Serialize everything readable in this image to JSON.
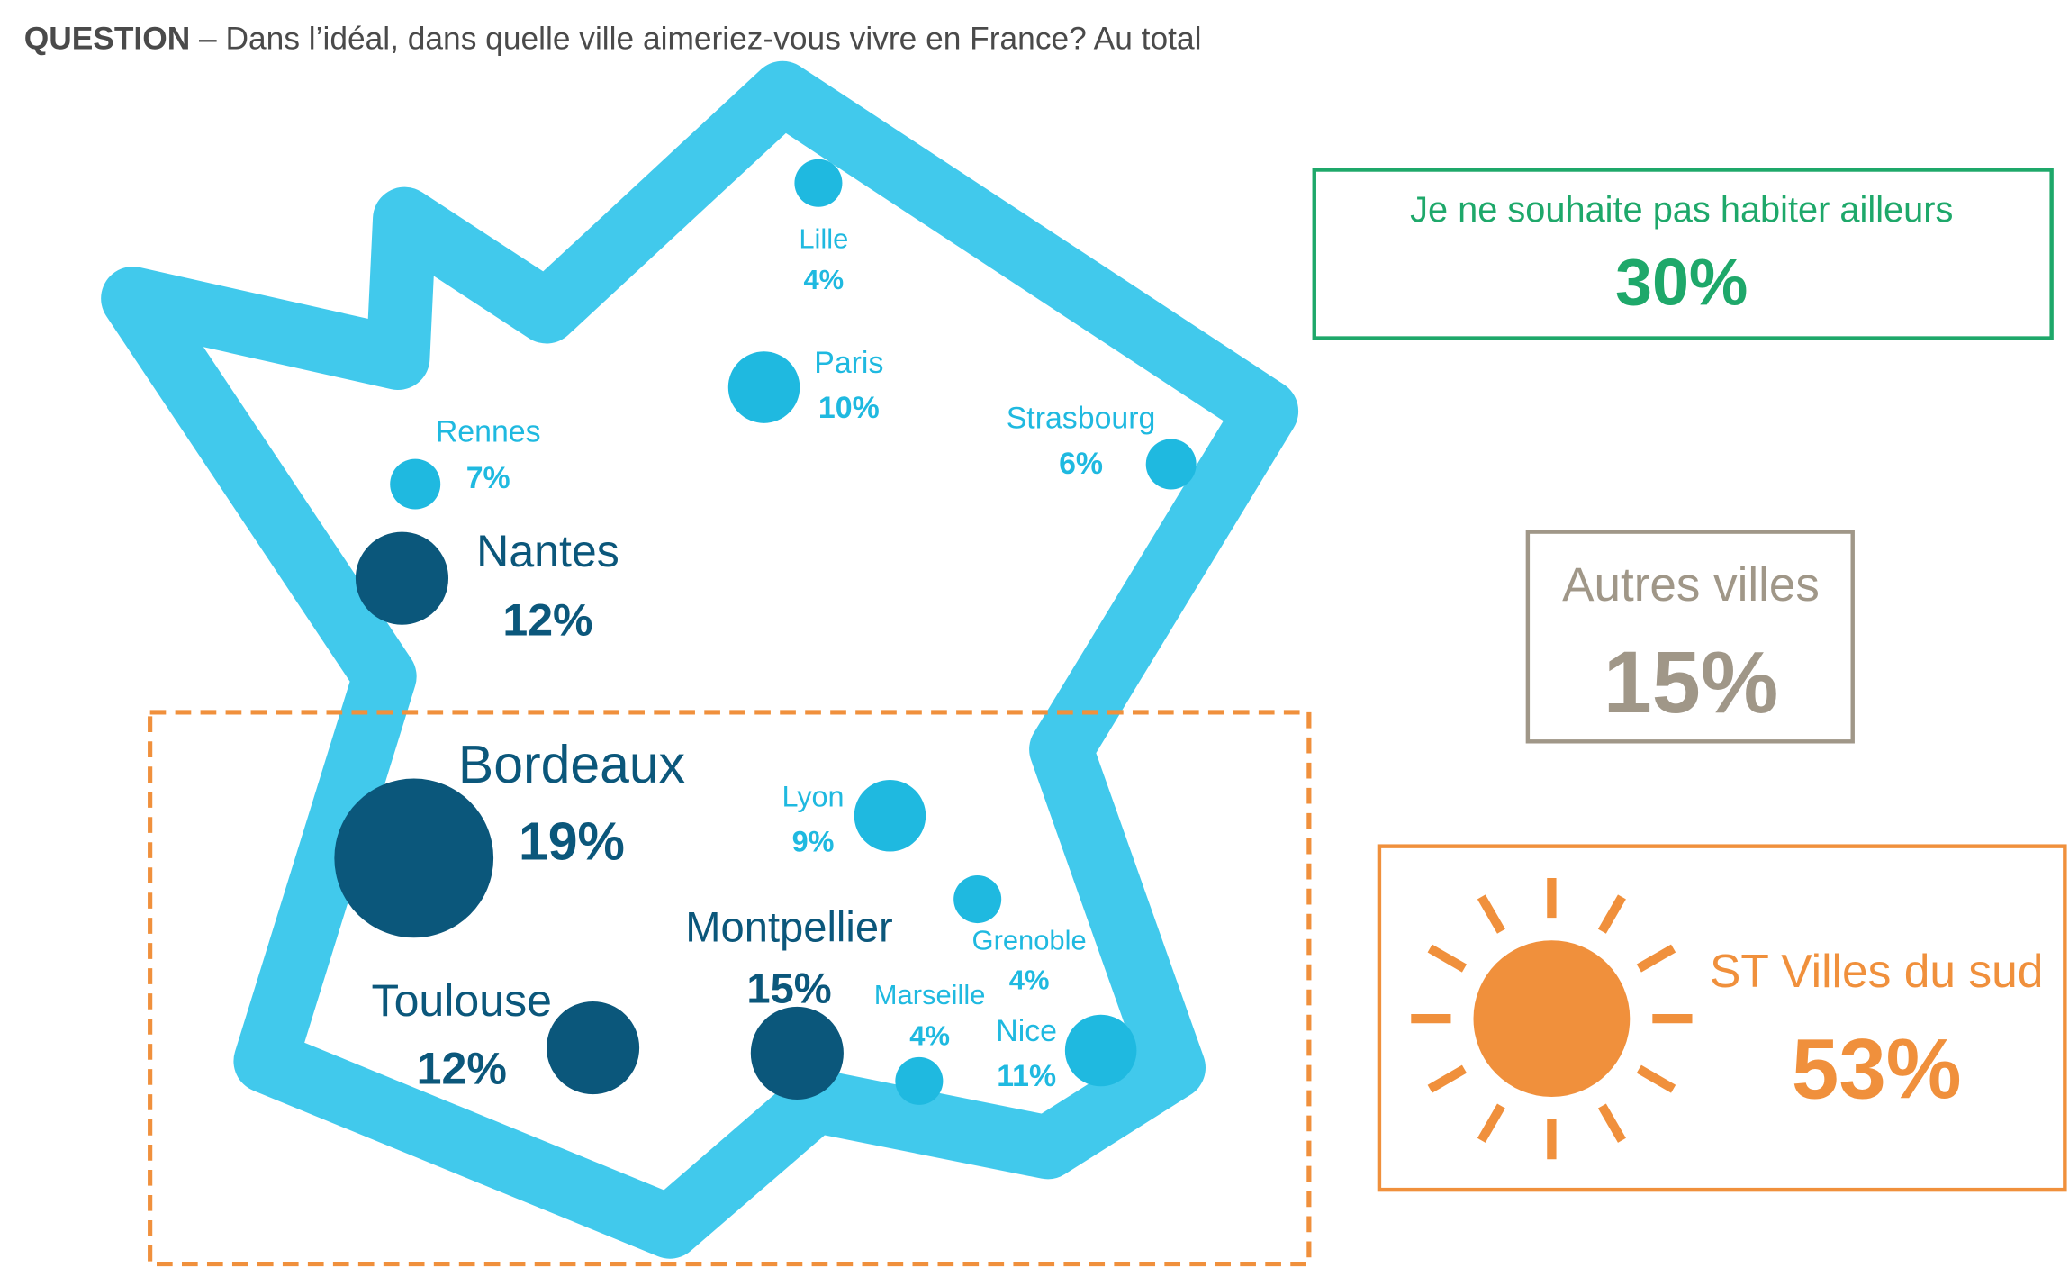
{
  "question": {
    "prefix": "QUESTION",
    "text": " – Dans l’idéal, dans quelle ville aimeriez-vous vivre en France? Au total"
  },
  "colors": {
    "outline": "#41C9EC",
    "light_city": "#1FB9E0",
    "dark_city": "#0B577B",
    "green": "#1EA86A",
    "gray": "#A09788",
    "orange": "#F0903C"
  },
  "cities": [
    {
      "name": "Lille",
      "value": "4%",
      "pct": 4,
      "tier": "light"
    },
    {
      "name": "Paris",
      "value": "10%",
      "pct": 10,
      "tier": "light"
    },
    {
      "name": "Strasbourg",
      "value": "6%",
      "pct": 6,
      "tier": "light"
    },
    {
      "name": "Rennes",
      "value": "7%",
      "pct": 7,
      "tier": "light"
    },
    {
      "name": "Nantes",
      "value": "12%",
      "pct": 12,
      "tier": "dark"
    },
    {
      "name": "Bordeaux",
      "value": "19%",
      "pct": 19,
      "tier": "dark"
    },
    {
      "name": "Lyon",
      "value": "9%",
      "pct": 9,
      "tier": "light"
    },
    {
      "name": "Grenoble",
      "value": "4%",
      "pct": 4,
      "tier": "light"
    },
    {
      "name": "Toulouse",
      "value": "12%",
      "pct": 12,
      "tier": "dark"
    },
    {
      "name": "Montpellier",
      "value": "15%",
      "pct": 15,
      "tier": "dark"
    },
    {
      "name": "Marseille",
      "value": "4%",
      "pct": 4,
      "tier": "light"
    },
    {
      "name": "Nice",
      "value": "11%",
      "pct": 11,
      "tier": "light"
    }
  ],
  "boxes": {
    "stay": {
      "label": "Je ne souhaite pas habiter ailleurs",
      "value": "30%"
    },
    "others": {
      "label": "Autres villes",
      "value": "15%"
    },
    "south": {
      "label": "ST Villes du sud",
      "value": "53%",
      "icon": "sun-icon"
    }
  }
}
